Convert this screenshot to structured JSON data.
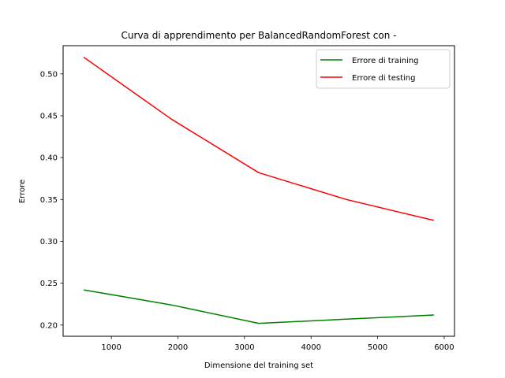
{
  "chart_data": {
    "type": "line",
    "title": "Curva di apprendimento per BalancedRandomForest con -",
    "xlabel": "Dimensione del training set",
    "ylabel": "Errore",
    "x": [
      585,
      1900,
      3215,
      4530,
      5845
    ],
    "xlim": [
      275,
      6155
    ],
    "ylim": [
      0.1866,
      0.5337
    ],
    "xticks": [
      1000,
      2000,
      3000,
      4000,
      5000,
      6000
    ],
    "xtick_labels": [
      "1000",
      "2000",
      "3000",
      "4000",
      "5000",
      "6000"
    ],
    "yticks": [
      0.2,
      0.25,
      0.3,
      0.35,
      0.4,
      0.45,
      0.5
    ],
    "ytick_labels": [
      "0.20",
      "0.25",
      "0.30",
      "0.35",
      "0.40",
      "0.45",
      "0.50"
    ],
    "grid": false,
    "legend_position": "top-right",
    "series": [
      {
        "name": "Errore di training",
        "color": "#008000",
        "values": [
          0.242,
          0.224,
          0.202,
          0.207,
          0.212
        ]
      },
      {
        "name": "Errore di testing",
        "color": "#ff0000",
        "values": [
          0.52,
          0.446,
          0.382,
          0.35,
          0.325
        ]
      }
    ]
  }
}
